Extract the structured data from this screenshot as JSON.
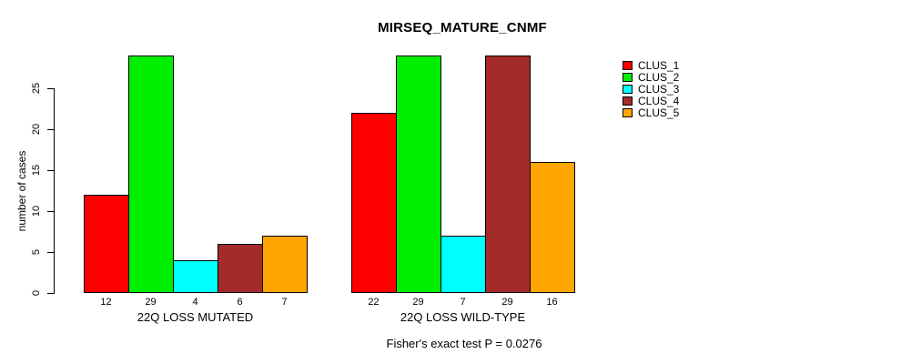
{
  "chart_data": {
    "type": "bar",
    "title": "MIRSEQ_MATURE_CNMF",
    "ylabel": "number of cases",
    "xlabel": "",
    "categories": [
      "22Q LOSS MUTATED",
      "22Q LOSS WILD-TYPE"
    ],
    "series": [
      {
        "name": "CLUS_1",
        "color": "#FF0000",
        "values": [
          12,
          22
        ]
      },
      {
        "name": "CLUS_2",
        "color": "#00EE00",
        "values": [
          29,
          29
        ]
      },
      {
        "name": "CLUS_3",
        "color": "#00FFFF",
        "values": [
          4,
          7
        ]
      },
      {
        "name": "CLUS_4",
        "color": "#A52A2A",
        "values": [
          6,
          29
        ]
      },
      {
        "name": "CLUS_5",
        "color": "#FFA500",
        "values": [
          7,
          16
        ]
      }
    ],
    "yticks": [
      0,
      5,
      10,
      15,
      20,
      25
    ],
    "ylim": [
      0,
      29
    ],
    "grid": false,
    "show_bar_values": true,
    "legend_position": "right",
    "annotation": "Fisher's exact test P = 0.0276",
    "background": "#FFFFFF",
    "axis_color": "#000000"
  }
}
